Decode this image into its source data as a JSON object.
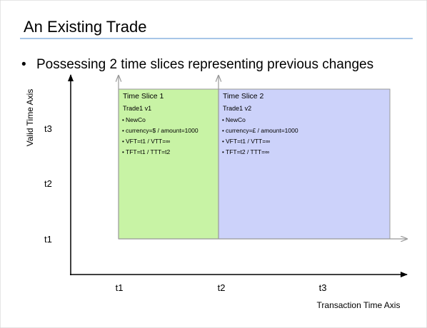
{
  "header": {
    "title": "An Existing Trade"
  },
  "bullet": "Possessing 2 time slices representing previous changes",
  "axes": {
    "y_label": "Valid Time Axis",
    "x_label": "Transaction Time Axis",
    "y_ticks": [
      "t3",
      "t2",
      "t1"
    ],
    "x_ticks": [
      "t1",
      "t2",
      "t3"
    ]
  },
  "slices": [
    {
      "title": "Time Slice 1",
      "trade": "Trade1 v1",
      "items": [
        "NewCo",
        "currency=$ / amount=1000",
        "VFT=t1 / VTT=∞",
        "TFT=t1 / TTT=t2"
      ]
    },
    {
      "title": "Time Slice 2",
      "trade": "Trade1 v2",
      "items": [
        "NewCo",
        "currency=£ / amount=1000",
        "VFT=t1 / VTT=∞",
        "TFT=t2 / TTT=∞"
      ]
    }
  ]
}
